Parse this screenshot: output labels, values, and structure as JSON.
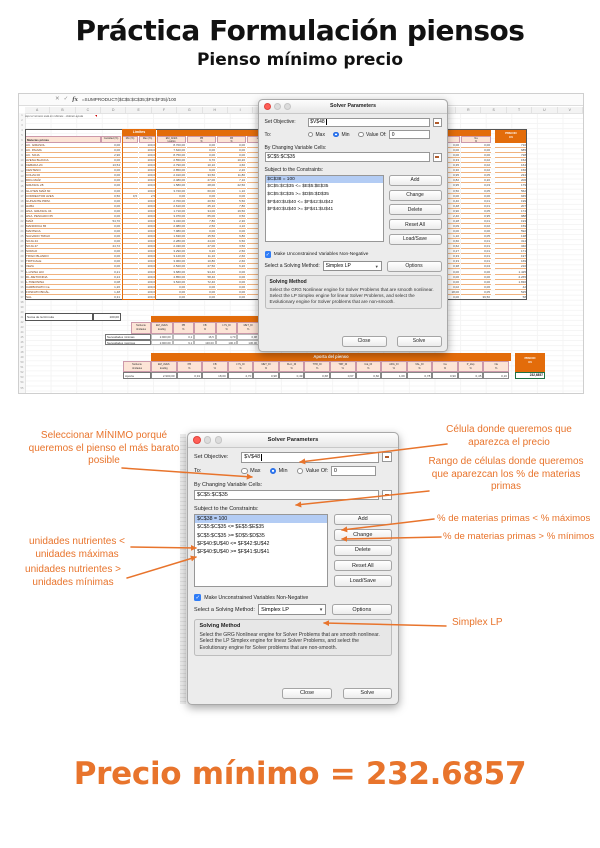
{
  "title": "Práctica Formulación piensos",
  "subtitle": "Pienso mínimo precio",
  "result": "Precio mínimo = 232.6857",
  "colors": {
    "accent": "#E8742C",
    "excel_header": "#E36C0A",
    "selection_blue": "#B3CCF4"
  },
  "solver": {
    "window_title": "Solver Parameters",
    "set_objective_label": "Set Objective:",
    "objective_value": "$V$48",
    "to_label": "To:",
    "max_label": "Max",
    "min_label": "Min",
    "value_of_label": "Value Of:",
    "value_of_value": "0",
    "by_changing_label": "By Changing Variable Cells:",
    "changing_cells": "$C$5:$C$35",
    "constraints_label": "Subject to the Constraints:",
    "constraints": [
      "$C$38 = 100",
      "$C$5:$C$35 <= $E$5:$E$35",
      "$C$5:$C$35 >= $D$5:$D$35",
      "$F$40:$U$40 <= $F$42:$U$42",
      "$F$40:$U$40 >= $F$41:$U$41"
    ],
    "buttons": {
      "add": "Add",
      "change": "Change",
      "delete": "Delete",
      "reset_all": "Reset All",
      "load_save": "Load/Save",
      "options": "Options",
      "close": "Close",
      "solve": "Solve"
    },
    "non_negative_label": "Make Unconstrained Variables Non-Negative",
    "solving_method_label": "Select a Solving Method:",
    "solving_method_value": "Simplex LP",
    "method_group_title": "Solving Method",
    "method_description": "Select the GRG Nonlinear engine for Solver Problems that are smooth nonlinear. Select the LP Simplex engine for linear Solver Problems, and select the Evolutionary engine for Solver problems that are non-smooth."
  },
  "annotations": {
    "min_note": "Seleccionar MÍNIMO porqué queremos el pienso el más barato posible",
    "nutr_max": "unidades nutrientes < unidades máximas",
    "nutr_min": "unidades nutrientes > unidades mínimas",
    "price_cell": "Célula donde queremos que aparezca el precio",
    "range_cells": "Rango de células donde queremos que aparezcan los % de materias primas",
    "mp_max": "% de materias primas < % máximos",
    "mp_min": "% de materias primas > % mínimos",
    "simplex": "Simplex LP"
  },
  "excel": {
    "fx_label": "fx",
    "formula": "=SUMPRODUCT($C$5:$C$35;$F5:$F35)/100",
    "note": "Aquí el número está en millones · obtener ayuda",
    "col_letters": [
      "A",
      "B",
      "C",
      "D",
      "E",
      "F",
      "G",
      "H",
      "I",
      "J",
      "K",
      "L",
      "M",
      "N",
      "O",
      "P",
      "Q",
      "R",
      "S",
      "T",
      "U",
      "V"
    ],
    "row_count": 55,
    "limites_title": "Límites",
    "headers": {
      "materias": "Materias primas",
      "cantidad": "Cantidad (%)",
      "min": "Min (%)",
      "max": "Max (%)"
    },
    "nutrient_cols_left": [
      [
        "EM_AVES",
        "kcal/kg"
      ],
      [
        "PB",
        "%"
      ],
      [
        "FB",
        "%"
      ],
      [
        "LYS_DI",
        "%"
      ]
    ],
    "nutrient_cols_right": [
      [
        "P",
        "%"
      ],
      [
        "Na",
        "%"
      ]
    ],
    "precio_header": [
      "PRECIO",
      "€/t"
    ],
    "rows": [
      [
        "AC. GIRASOL",
        "0,00",
        "",
        "100,0",
        "8.700,00",
        "0,00",
        "0,00",
        "0,00",
        "0,00",
        "0,00",
        "710"
      ],
      [
        "AC. PALMA",
        "0,00",
        "",
        "100,0",
        "7.620,00",
        "0,00",
        "0,00",
        "0,00",
        "0,00",
        "0,00",
        "685"
      ],
      [
        "AC. SOJA",
        "2,96",
        "",
        "100,0",
        "8.750,00",
        "0,00",
        "0,00",
        "0,00",
        "0,00",
        "0,00",
        "728"
      ],
      [
        "AVENA BLANCA",
        "0,00",
        "",
        "100,0",
        "2.550,00",
        "9,70",
        "10,20",
        "0,40",
        "0,33",
        "0,02",
        "152"
      ],
      [
        "CEBADA 2C",
        "13,54",
        "",
        "100,0",
        "2.790,00",
        "10,10",
        "4,60",
        "0,37",
        "0,35",
        "0,02",
        "164"
      ],
      [
        "CENTENO",
        "0,00",
        "",
        "100,0",
        "2.850,00",
        "9,00",
        "2,20",
        "0,36",
        "0,30",
        "0,02",
        "150"
      ],
      [
        "COLZA 00",
        "0,00",
        "",
        "100,0",
        "2.010,00",
        "33,50",
        "11,80",
        "1,80",
        "0,95",
        "0,05",
        "234"
      ],
      [
        "DDG MAÍZ",
        "0,00",
        "",
        "100,0",
        "2.480,00",
        "27,00",
        "7,10",
        "0,78",
        "0,82",
        "0,20",
        "206"
      ],
      [
        "GIRASOL 28",
        "0,00",
        "",
        "100,0",
        "1.580,00",
        "28,00",
        "22,50",
        "1,00",
        "0,95",
        "0,03",
        "179"
      ],
      [
        "GLUTEN MAÍZ 60",
        "0,00",
        "",
        "100,0",
        "3.720,00",
        "60,00",
        "1,10",
        "1,00",
        "0,50",
        "0,05",
        "562"
      ],
      [
        "CORRECTOR AVES",
        "0,50",
        "0,5",
        "2,5",
        "0,00",
        "0,00",
        "0,00",
        "0,00",
        "0,00",
        "0,00",
        "945"
      ],
      [
        "GUISANTE PRIM.",
        "0,00",
        "",
        "100,0",
        "2.700,00",
        "20,50",
        "5,50",
        "1,47",
        "0,40",
        "0,01",
        "199"
      ],
      [
        "HABA",
        "0,00",
        "",
        "100,0",
        "2.610,00",
        "25,10",
        "7,80",
        "1,55",
        "0,48",
        "0,01",
        "207"
      ],
      [
        "HNA. GIRASOL 34",
        "0,00",
        "",
        "100,0",
        "1.710,00",
        "34,00",
        "19,50",
        "1,18",
        "0,90",
        "0,05",
        "174"
      ],
      [
        "HNA. PESCADO 65",
        "0,00",
        "",
        "100,0",
        "3.070,00",
        "65,00",
        "0,50",
        "4,90",
        "2,40",
        "0,95",
        "988"
      ],
      [
        "MAÍZ",
        "54,70",
        "",
        "100,0",
        "3.340,00",
        "7,80",
        "2,30",
        "0,26",
        "0,28",
        "0,01",
        "193"
      ],
      [
        "MANDIOCA 65",
        "0,00",
        "",
        "100,0",
        "2.980,00",
        "2,50",
        "4,10",
        "0,10",
        "0,09",
        "0,02",
        "159"
      ],
      [
        "MANTECA",
        "0,00",
        "",
        "100,0",
        "7.980,00",
        "0,00",
        "0,00",
        "0,00",
        "0,00",
        "0,00",
        "592"
      ],
      [
        "SALVADO TRIGO",
        "0,00",
        "",
        "100,0",
        "1.630,00",
        "15,50",
        "9,80",
        "0,60",
        "1,10",
        "0,05",
        "138"
      ],
      [
        "SOJA 44",
        "0,00",
        "",
        "100,0",
        "2.280,00",
        "44,00",
        "6,50",
        "2,70",
        "0,60",
        "0,01",
        "314"
      ],
      [
        "SOJA 47",
        "24,72",
        "",
        "100,0",
        "2.430,00",
        "47,00",
        "3,50",
        "2,88",
        "0,62",
        "0,01",
        "340"
      ],
      [
        "SORGO",
        "0,00",
        "",
        "100,0",
        "3.290,00",
        "9,20",
        "2,50",
        "0,21",
        "0,27",
        "0,01",
        "171"
      ],
      [
        "TRIGO BLANDO",
        "0,00",
        "",
        "100,0",
        "3.120,00",
        "11,10",
        "2,60",
        "0,30",
        "0,33",
        "0,01",
        "197"
      ],
      [
        "TRITICALE",
        "0,00",
        "",
        "100,0",
        "3.060,00",
        "10,80",
        "2,60",
        "0,36",
        "0,33",
        "0,01",
        "169"
      ],
      [
        "VEZA",
        "0,00",
        "",
        "100,0",
        "2.520,00",
        "27,50",
        "6,20",
        "1,55",
        "0,38",
        "0,04",
        "216"
      ],
      [
        "L-LISINA HCl",
        "0,21",
        "",
        "100,0",
        "3.680,00",
        "94,40",
        "0,00",
        "78,00",
        "0,00",
        "0,00",
        "1.425"
      ],
      [
        "DL-METIONINA",
        "0,24",
        "",
        "100,0",
        "4.850,00",
        "58,40",
        "0,00",
        "0,00",
        "0,00",
        "0,00",
        "2.265"
      ],
      [
        "L-TREONINA",
        "0,08",
        "",
        "100,0",
        "3.520,00",
        "72,40",
        "0,00",
        "0,00",
        "0,00",
        "0,00",
        "1.830"
      ],
      [
        "CARBONATO Ca",
        "1,26",
        "",
        "100,0",
        "0,00",
        "0,00",
        "0,00",
        "0,00",
        "0,02",
        "0,06",
        "42"
      ],
      [
        "FOSFATO BICÁL.",
        "1,48",
        "",
        "100,0",
        "0,00",
        "0,00",
        "0,00",
        "0,00",
        "18,00",
        "0,05",
        "525"
      ],
      [
        "SAL",
        "0,31",
        "",
        "100,0",
        "0,00",
        "0,00",
        "0,00",
        "0,00",
        "0,00",
        "39,50",
        "58"
      ]
    ],
    "suma": {
      "label": "Suma de la fórmula",
      "value": "100,00"
    },
    "necesidades": {
      "corner": [
        "Nutriente",
        "Unidades"
      ],
      "cols": [
        [
          "EM_AVES",
          "kcal/kg"
        ],
        [
          "PB",
          "%"
        ],
        [
          "FB",
          "%"
        ],
        [
          "LYS_DI",
          "%"
        ],
        [
          "MET_DI",
          "%"
        ]
      ],
      "rows": [
        {
          "label": "Necesidades mínimas",
          "vals": [
            "2.900,00",
            "0,1",
            "16,5",
            "4,70",
            "0,98"
          ]
        },
        {
          "label": "Necesidades máximas",
          "vals": [
            "2.900,00",
            "9,1",
            "130,00",
            "100,0",
            "130,00"
          ]
        }
      ]
    },
    "aporta": {
      "band": "Aporta del pienso",
      "corner": [
        "Nutriente",
        "Unidades"
      ],
      "row_label": "Aporta",
      "cols": [
        [
          "EM_AVES",
          "kcal/kg"
        ],
        [
          "PB",
          "%"
        ],
        [
          "FB",
          "%"
        ],
        [
          "LYS_DI",
          "%"
        ],
        [
          "MET_DI",
          "%"
        ],
        [
          "M+C_DI",
          "%"
        ],
        [
          "THR_DI",
          "%"
        ],
        [
          "TRP_DI",
          "%"
        ],
        [
          "ILE_DI",
          "%"
        ],
        [
          "ARG_DI",
          "%"
        ],
        [
          "VAL_DI",
          "%"
        ],
        [
          "Ca",
          "%"
        ],
        [
          "P_disp",
          "%"
        ],
        [
          "Na",
          "%"
        ]
      ],
      "vals": [
        "2.900,00",
        "0,91",
        "18,00",
        "4,70",
        "0,98",
        "0,49",
        "0,68",
        "0,67",
        "0,60",
        "1,09",
        "0,78",
        "0,90",
        "0,45",
        "0,16"
      ],
      "precio_header": [
        "PRECIO",
        "€/t"
      ],
      "precio_value": "232,6857"
    }
  }
}
